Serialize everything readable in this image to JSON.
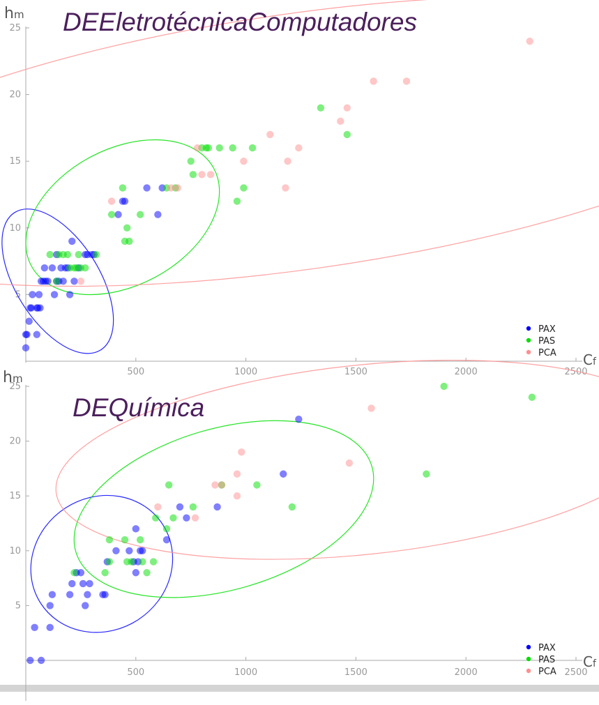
{
  "colors": {
    "PAX": "#0000ff",
    "PAS": "#00e000",
    "PCA": "#ff8f8f",
    "axis": "#aaaaaa",
    "title": "#4b1f5c",
    "band": "#d4d4d4"
  },
  "chart_data": [
    {
      "type": "scatter",
      "title": "DEEletrotécnicaComputadores",
      "xlabel": "C",
      "xlabel_sub": "f",
      "ylabel": "h",
      "ylabel_sub": "m",
      "xlim": [
        0,
        2500
      ],
      "ylim": [
        0,
        25
      ],
      "xticks": [
        500,
        1000,
        1500,
        2000,
        2500
      ],
      "yticks": [
        5,
        10,
        15,
        20,
        25
      ],
      "legend": [
        "PAX",
        "PAS",
        "PCA"
      ],
      "legend_position": "bottom-right",
      "series": [
        {
          "name": "PAX",
          "points": [
            [
              0,
              1
            ],
            [
              0,
              2
            ],
            [
              5,
              2
            ],
            [
              15,
              3
            ],
            [
              20,
              4
            ],
            [
              25,
              4
            ],
            [
              30,
              5
            ],
            [
              50,
              2
            ],
            [
              50,
              4
            ],
            [
              55,
              4
            ],
            [
              60,
              5
            ],
            [
              65,
              4
            ],
            [
              70,
              6
            ],
            [
              80,
              6
            ],
            [
              85,
              7
            ],
            [
              90,
              6
            ],
            [
              100,
              6
            ],
            [
              120,
              7
            ],
            [
              130,
              5
            ],
            [
              140,
              8
            ],
            [
              140,
              6
            ],
            [
              150,
              6
            ],
            [
              160,
              7
            ],
            [
              170,
              6
            ],
            [
              180,
              7
            ],
            [
              190,
              7
            ],
            [
              200,
              5
            ],
            [
              210,
              9
            ],
            [
              220,
              6
            ],
            [
              240,
              7
            ],
            [
              270,
              8
            ],
            [
              280,
              8
            ],
            [
              300,
              8
            ],
            [
              310,
              8
            ],
            [
              420,
              11
            ],
            [
              440,
              12
            ],
            [
              450,
              12
            ],
            [
              550,
              13
            ],
            [
              600,
              11
            ],
            [
              620,
              13
            ]
          ]
        },
        {
          "name": "PAS",
          "points": [
            [
              110,
              8
            ],
            [
              140,
              6
            ],
            [
              150,
              8
            ],
            [
              170,
              8
            ],
            [
              190,
              8
            ],
            [
              200,
              7
            ],
            [
              220,
              7
            ],
            [
              230,
              7
            ],
            [
              240,
              8
            ],
            [
              250,
              7
            ],
            [
              270,
              7
            ],
            [
              320,
              8
            ],
            [
              390,
              11
            ],
            [
              440,
              13
            ],
            [
              450,
              9
            ],
            [
              460,
              10
            ],
            [
              470,
              9
            ],
            [
              520,
              11
            ],
            [
              640,
              13
            ],
            [
              680,
              13
            ],
            [
              750,
              15
            ],
            [
              760,
              14
            ],
            [
              800,
              16
            ],
            [
              820,
              16
            ],
            [
              830,
              16
            ],
            [
              880,
              16
            ],
            [
              940,
              16
            ],
            [
              960,
              12
            ],
            [
              990,
              13
            ],
            [
              1030,
              16
            ],
            [
              1340,
              19
            ],
            [
              1460,
              17
            ]
          ]
        },
        {
          "name": "PCA",
          "points": [
            [
              250,
              6
            ],
            [
              390,
              12
            ],
            [
              660,
              13
            ],
            [
              690,
              13
            ],
            [
              780,
              16
            ],
            [
              800,
              14
            ],
            [
              840,
              14
            ],
            [
              990,
              15
            ],
            [
              1110,
              17
            ],
            [
              1180,
              13
            ],
            [
              1190,
              15
            ],
            [
              1240,
              16
            ],
            [
              1430,
              18
            ],
            [
              1460,
              19
            ],
            [
              1580,
              21
            ],
            [
              1730,
              21
            ],
            [
              2290,
              24
            ]
          ]
        }
      ],
      "ellipses": [
        {
          "series": "PAX",
          "center": [
            145,
            6
          ],
          "radii": [
            190,
            1.9
          ],
          "angle": 32
        },
        {
          "series": "PAS",
          "center": [
            440,
            10.8
          ],
          "radii": [
            470,
            1.6
          ],
          "angle": 28
        },
        {
          "series": "PCA",
          "center": [
            1250,
            16.5
          ],
          "radii": [
            2300,
            3.0
          ],
          "angle": 8
        }
      ]
    },
    {
      "type": "scatter",
      "title": "DEQuímica",
      "xlabel": "C",
      "xlabel_sub": "f",
      "ylabel": "h",
      "ylabel_sub": "m",
      "xlim": [
        0,
        2500
      ],
      "ylim": [
        0,
        25
      ],
      "xticks": [
        500,
        1000,
        1500,
        2000,
        2500
      ],
      "yticks": [
        5,
        10,
        15,
        20,
        25
      ],
      "legend": [
        "PAX",
        "PAS",
        "PCA"
      ],
      "legend_position": "bottom-right",
      "series": [
        {
          "name": "PAX",
          "points": [
            [
              20,
              0
            ],
            [
              70,
              0
            ],
            [
              40,
              3
            ],
            [
              110,
              3
            ],
            [
              110,
              5
            ],
            [
              120,
              6
            ],
            [
              200,
              6
            ],
            [
              210,
              7
            ],
            [
              230,
              8
            ],
            [
              250,
              8
            ],
            [
              260,
              7
            ],
            [
              270,
              5
            ],
            [
              280,
              6
            ],
            [
              290,
              7
            ],
            [
              350,
              6
            ],
            [
              360,
              6
            ],
            [
              370,
              9
            ],
            [
              410,
              10
            ],
            [
              470,
              10
            ],
            [
              490,
              9
            ],
            [
              500,
              12
            ],
            [
              500,
              8
            ],
            [
              510,
              9
            ],
            [
              520,
              10
            ],
            [
              530,
              10
            ],
            [
              640,
              11
            ],
            [
              700,
              14
            ],
            [
              730,
              13
            ],
            [
              870,
              14
            ],
            [
              1170,
              17
            ],
            [
              1240,
              22
            ]
          ]
        },
        {
          "name": "PAS",
          "points": [
            [
              220,
              8
            ],
            [
              360,
              8
            ],
            [
              380,
              11
            ],
            [
              380,
              9
            ],
            [
              450,
              11
            ],
            [
              460,
              9
            ],
            [
              480,
              9
            ],
            [
              520,
              11
            ],
            [
              530,
              9
            ],
            [
              550,
              8
            ],
            [
              580,
              9
            ],
            [
              590,
              13
            ],
            [
              640,
              12
            ],
            [
              650,
              16
            ],
            [
              670,
              13
            ],
            [
              760,
              14
            ],
            [
              890,
              16
            ],
            [
              1050,
              16
            ],
            [
              1210,
              14
            ],
            [
              1820,
              17
            ],
            [
              1900,
              25
            ],
            [
              2300,
              24
            ]
          ]
        },
        {
          "name": "PCA",
          "points": [
            [
              600,
              14
            ],
            [
              770,
              13
            ],
            [
              860,
              16
            ],
            [
              890,
              16
            ],
            [
              960,
              17
            ],
            [
              980,
              19
            ],
            [
              960,
              15
            ],
            [
              1470,
              18
            ],
            [
              1570,
              23
            ]
          ]
        }
      ],
      "ellipses": [
        {
          "series": "PAX",
          "center": [
            345,
            8.8
          ],
          "radii": [
            330,
            1.9
          ],
          "angle": 33
        },
        {
          "series": "PAS",
          "center": [
            900,
            13.8
          ],
          "radii": [
            700,
            2.3
          ],
          "angle": 16
        },
        {
          "series": "PCA",
          "center": [
            1530,
            18.3
          ],
          "radii": [
            1400,
            2.7
          ],
          "angle": 6
        }
      ]
    }
  ]
}
